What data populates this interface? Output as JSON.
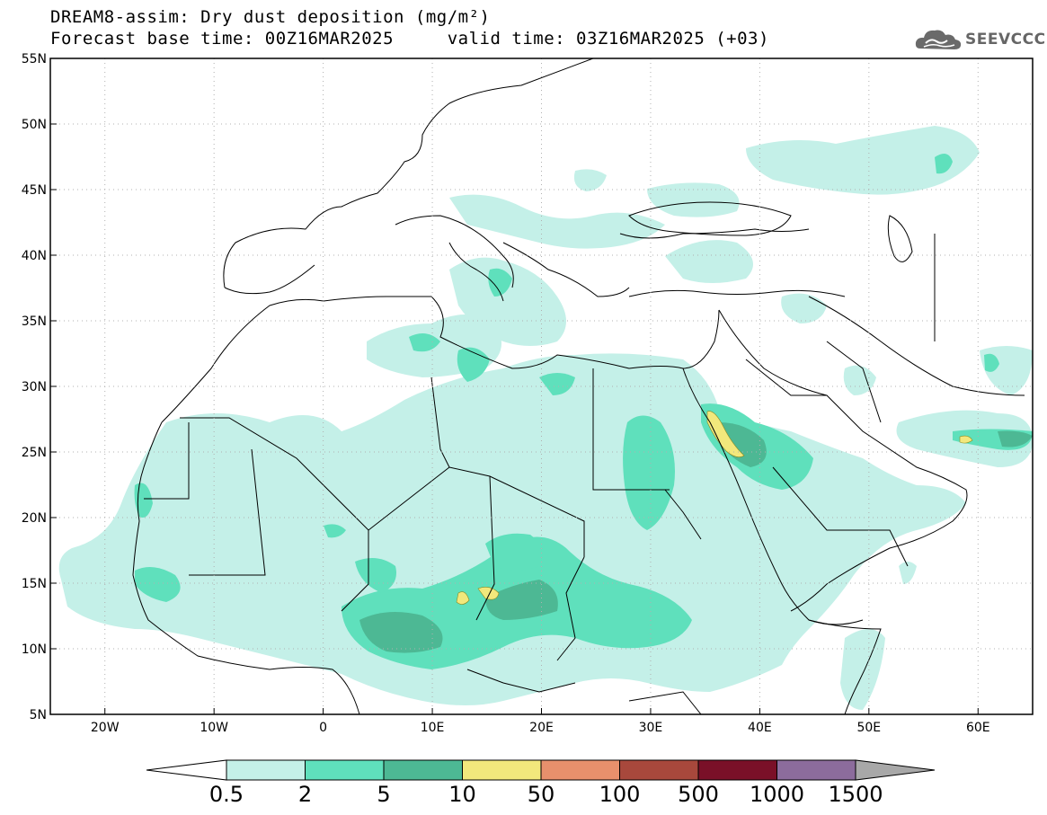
{
  "title": {
    "line1": "DREAM8-assim: Dry dust deposition (mg/m²)",
    "line2": "Forecast base time: 00Z16MAR2025     valid time: 03Z16MAR2025 (+03)"
  },
  "logo": {
    "text": "SEEVCCC",
    "icon": "cloud-icon"
  },
  "map": {
    "lon_range": [
      -25,
      65
    ],
    "lat_range": [
      5,
      55
    ],
    "x_ticks": [
      {
        "lon": -20,
        "label": "20W"
      },
      {
        "lon": -10,
        "label": "10W"
      },
      {
        "lon": 0,
        "label": "0"
      },
      {
        "lon": 10,
        "label": "10E"
      },
      {
        "lon": 20,
        "label": "20E"
      },
      {
        "lon": 30,
        "label": "30E"
      },
      {
        "lon": 40,
        "label": "40E"
      },
      {
        "lon": 50,
        "label": "50E"
      },
      {
        "lon": 60,
        "label": "60E"
      }
    ],
    "y_ticks": [
      {
        "lat": 55,
        "label": "55N"
      },
      {
        "lat": 50,
        "label": "50N"
      },
      {
        "lat": 45,
        "label": "45N"
      },
      {
        "lat": 40,
        "label": "40N"
      },
      {
        "lat": 35,
        "label": "35N"
      },
      {
        "lat": 30,
        "label": "30N"
      },
      {
        "lat": 25,
        "label": "25N"
      },
      {
        "lat": 20,
        "label": "20N"
      },
      {
        "lat": 15,
        "label": "15N"
      },
      {
        "lat": 10,
        "label": "10N"
      },
      {
        "lat": 5,
        "label": "5N"
      }
    ],
    "grid": true
  },
  "colorbar": {
    "colors": [
      "#c4f0e8",
      "#5fe0bc",
      "#4db894",
      "#f2e87c",
      "#e8906c",
      "#a8483c",
      "#7a1028",
      "#8c6c9c",
      "#a8a8a8"
    ],
    "labels": [
      "0.5",
      "2",
      "5",
      "10",
      "50",
      "100",
      "500",
      "1000",
      "1500"
    ]
  },
  "colors": {
    "level1": "#c4f0e8",
    "level2": "#5fe0bc",
    "level3": "#4db894",
    "level4": "#f2e87c",
    "border": "#000000"
  }
}
